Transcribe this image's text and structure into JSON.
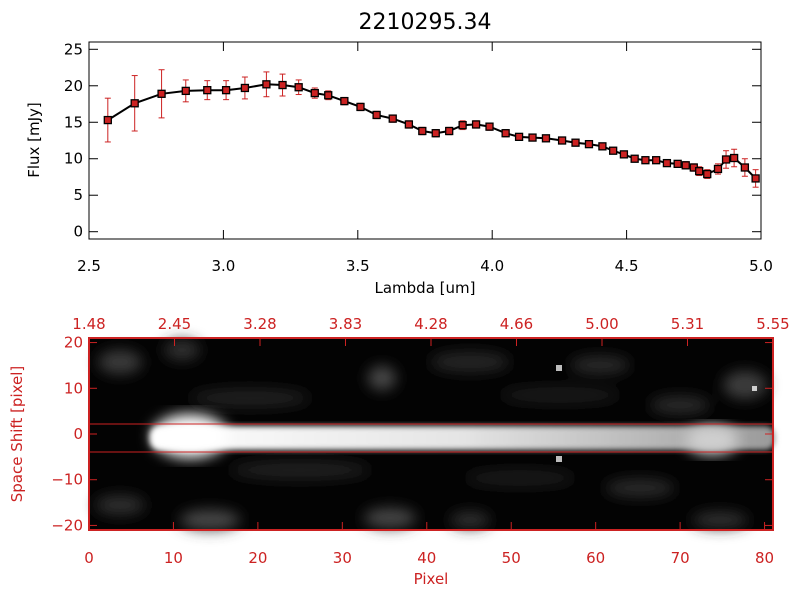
{
  "chart_data": [
    {
      "type": "line",
      "title": "2210295.34",
      "xlabel": "Lambda [um]",
      "ylabel": "Flux [mJy]",
      "xlim": [
        2.5,
        5.0
      ],
      "ylim": [
        -1,
        26
      ],
      "xticks": [
        2.5,
        3.0,
        3.5,
        4.0,
        4.5,
        5.0
      ],
      "xtick_labels": [
        "2.5",
        "3.0",
        "3.5",
        "4.0",
        "4.5",
        "5.0"
      ],
      "yticks": [
        0,
        5,
        10,
        15,
        20,
        25
      ],
      "ytick_labels": [
        "0",
        "5",
        "10",
        "15",
        "20",
        "25"
      ],
      "line_color": "#000000",
      "marker_color": "#cc2222",
      "series": [
        {
          "name": "flux",
          "x": [
            2.57,
            2.67,
            2.77,
            2.86,
            2.94,
            3.01,
            3.08,
            3.16,
            3.22,
            3.28,
            3.34,
            3.39,
            3.45,
            3.51,
            3.57,
            3.63,
            3.69,
            3.74,
            3.79,
            3.84,
            3.89,
            3.94,
            3.99,
            4.05,
            4.1,
            4.15,
            4.2,
            4.26,
            4.31,
            4.36,
            4.41,
            4.45,
            4.49,
            4.53,
            4.57,
            4.61,
            4.65,
            4.69,
            4.72,
            4.75,
            4.77,
            4.8,
            4.84,
            4.87,
            4.9,
            4.94,
            4.98
          ],
          "y": [
            15.3,
            17.6,
            18.9,
            19.3,
            19.4,
            19.4,
            19.7,
            20.2,
            20.1,
            19.8,
            19.0,
            18.7,
            17.9,
            17.1,
            16.0,
            15.5,
            14.7,
            13.8,
            13.5,
            13.8,
            14.6,
            14.7,
            14.4,
            13.5,
            13.0,
            12.9,
            12.8,
            12.5,
            12.2,
            12.0,
            11.7,
            11.1,
            10.6,
            10.0,
            9.8,
            9.8,
            9.4,
            9.3,
            9.1,
            8.8,
            8.3,
            7.9,
            8.6,
            9.9,
            10.1,
            8.8,
            7.3
          ],
          "yerr": [
            3.0,
            3.8,
            3.3,
            1.5,
            1.3,
            1.3,
            1.5,
            1.7,
            1.5,
            1.0,
            0.7,
            0.6,
            0.5,
            0.5,
            0.5,
            0.5,
            0.5,
            0.5,
            0.5,
            0.5,
            0.6,
            0.5,
            0.5,
            0.5,
            0.4,
            0.4,
            0.4,
            0.4,
            0.4,
            0.4,
            0.4,
            0.4,
            0.4,
            0.4,
            0.4,
            0.4,
            0.4,
            0.4,
            0.5,
            0.5,
            0.6,
            0.6,
            0.7,
            1.2,
            1.2,
            1.2,
            1.2
          ]
        }
      ]
    },
    {
      "type": "heatmap",
      "xlabel": "Pixel",
      "ylabel": "Space Shift [pixel]",
      "xlim": [
        0,
        81
      ],
      "ylim": [
        -21,
        21
      ],
      "xticks": [
        0,
        10,
        20,
        30,
        40,
        50,
        60,
        70,
        80
      ],
      "xtick_labels": [
        "0",
        "10",
        "20",
        "30",
        "40",
        "50",
        "60",
        "70",
        "80"
      ],
      "yticks": [
        -20,
        -10,
        0,
        10,
        20
      ],
      "ytick_labels": [
        "−20",
        "−10",
        "0",
        "10",
        "20"
      ],
      "top_axis_labels": [
        "1.48",
        "2.45",
        "3.28",
        "3.83",
        "4.28",
        "4.66",
        "5.00",
        "5.31",
        "5.55"
      ],
      "extraction_aperture": [
        -3,
        3
      ],
      "axis_color": "#cc2222",
      "background_color": "#000000"
    }
  ]
}
